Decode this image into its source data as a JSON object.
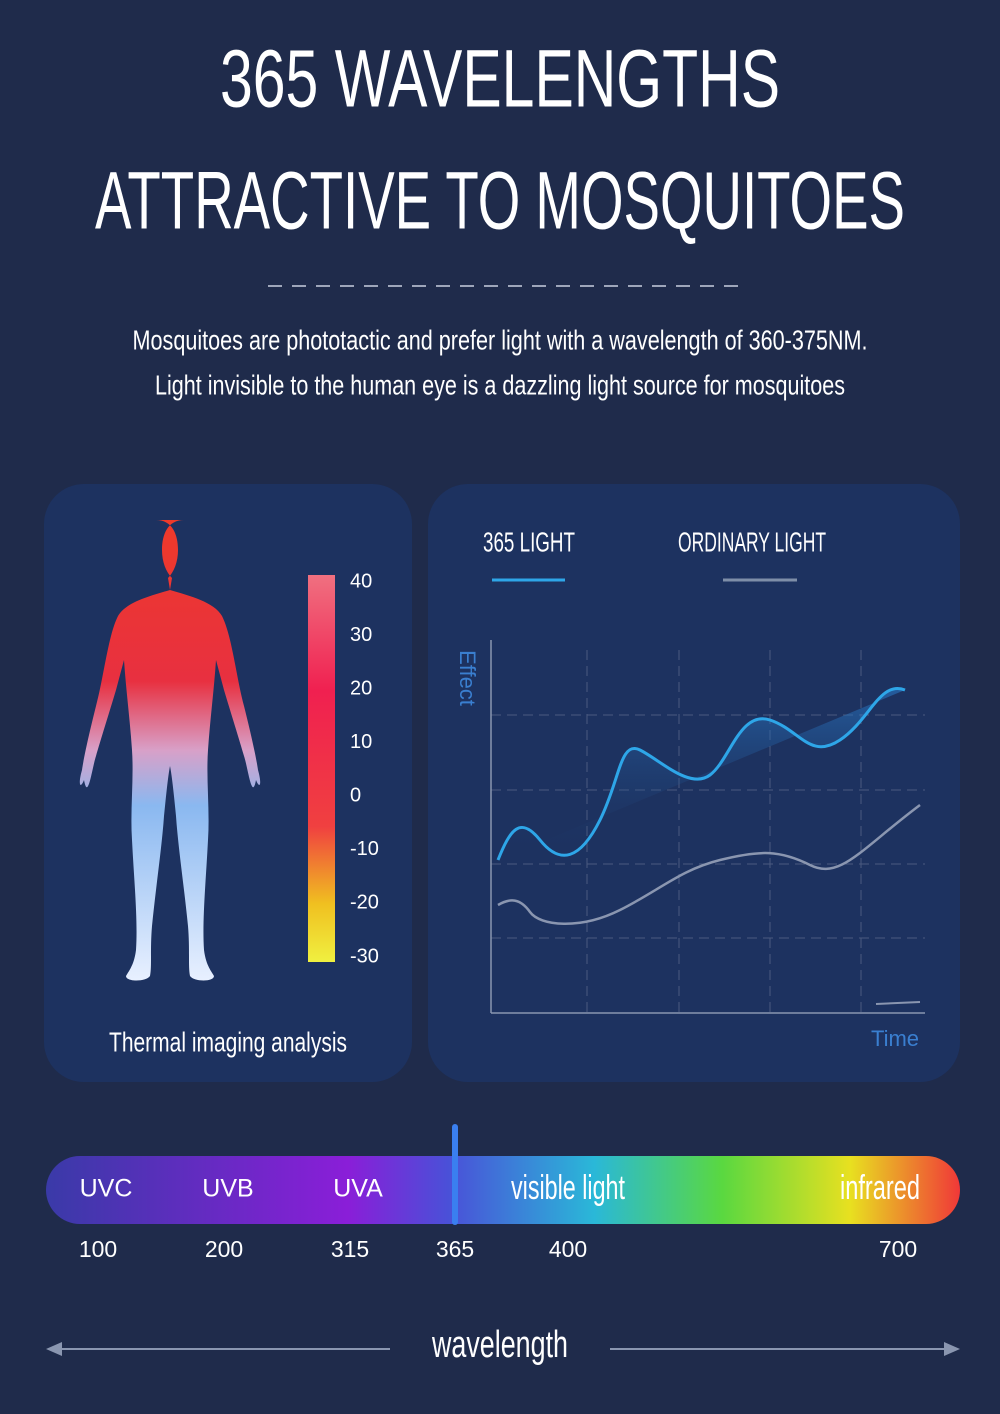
{
  "header": {
    "title_lines": [
      "365 WAVELENGTHS",
      "ATTRACTIVE TO MOSQUITOES"
    ],
    "subtitle_lines": [
      "Mosquitoes are phototactic and prefer light with a wavelength of 360-375NM.",
      "Light invisible to the human eye is a dazzling light source for mosquitoes"
    ]
  },
  "thermal": {
    "scale": [
      40,
      30,
      20,
      10,
      0,
      -10,
      -20,
      -30
    ],
    "caption": "Thermal imaging analysis"
  },
  "effect_chart": {
    "legend": [
      "365 LIGHT",
      "ORDINARY LIGHT"
    ],
    "y_label": "Effect",
    "x_label": "Time"
  },
  "spectrum": {
    "bands": [
      "UVC",
      "UVB",
      "UVA",
      "visible light",
      "infrared"
    ],
    "ticks": [
      100,
      200,
      315,
      365,
      400,
      700
    ],
    "axis_label": "wavelength"
  }
}
